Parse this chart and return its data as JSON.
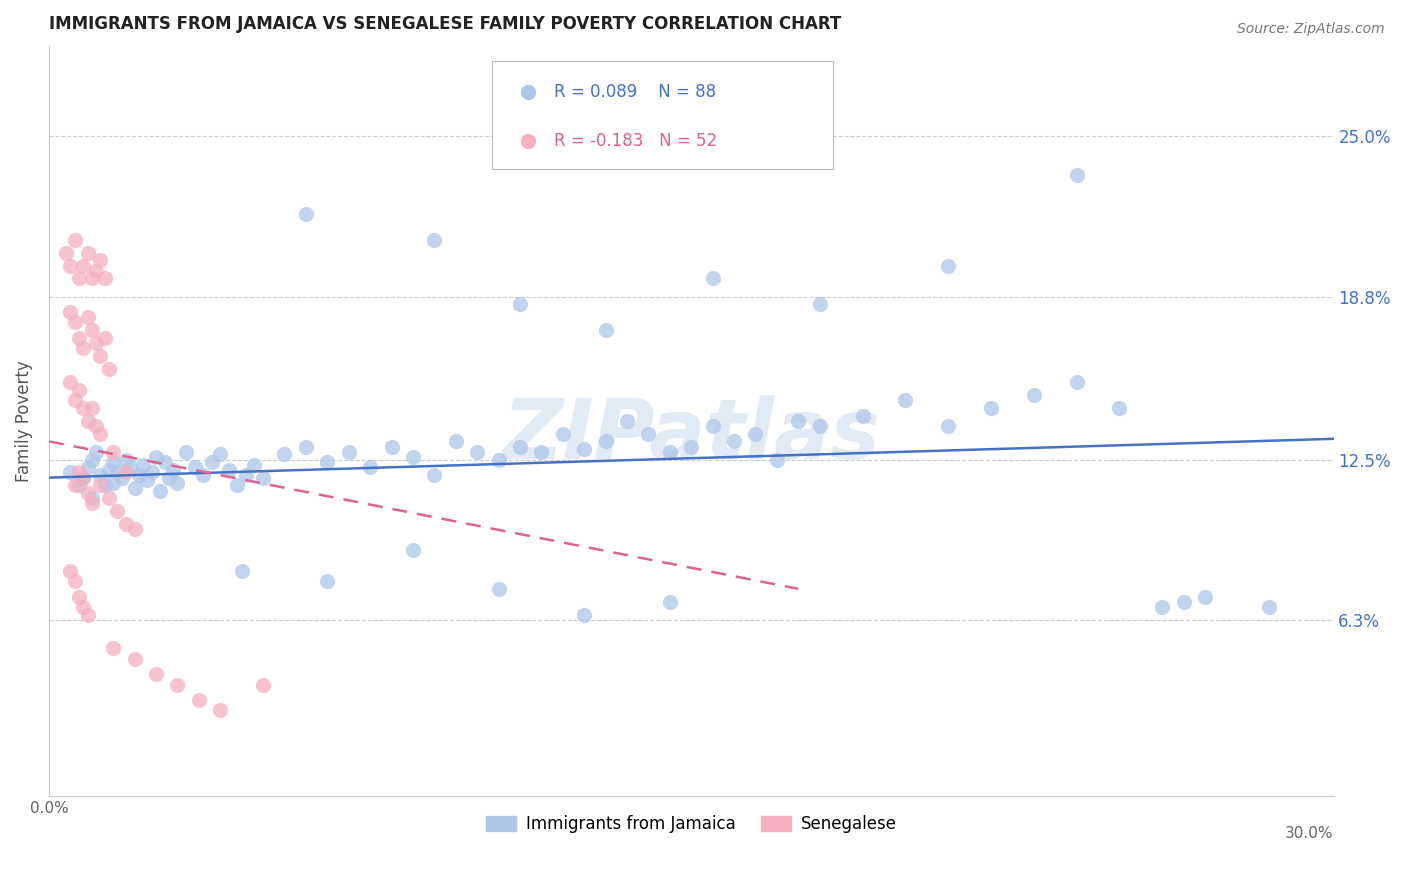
{
  "title": "IMMIGRANTS FROM JAMAICA VS SENEGALESE FAMILY POVERTY CORRELATION CHART",
  "source": "Source: ZipAtlas.com",
  "ylabel": "Family Poverty",
  "ytick_labels": [
    "25.0%",
    "18.8%",
    "12.5%",
    "6.3%"
  ],
  "ytick_values": [
    0.25,
    0.188,
    0.125,
    0.063
  ],
  "xlim": [
    0.0,
    0.3
  ],
  "ylim": [
    -0.005,
    0.285
  ],
  "legend_blue_R": "0.089",
  "legend_blue_N": "88",
  "legend_pink_R": "-0.183",
  "legend_pink_N": "52",
  "color_blue": "#adc6e8",
  "color_pink": "#f4afc0",
  "trendline_blue_color": "#4472c4",
  "trendline_pink_color": "#e06090",
  "watermark_text": "ZIPatlas",
  "watermark_color": "#d0ddf0",
  "blue_scatter_x": [
    0.005,
    0.007,
    0.008,
    0.009,
    0.01,
    0.01,
    0.011,
    0.012,
    0.013,
    0.014,
    0.015,
    0.015,
    0.016,
    0.017,
    0.018,
    0.019,
    0.02,
    0.021,
    0.022,
    0.023,
    0.024,
    0.025,
    0.026,
    0.027,
    0.028,
    0.029,
    0.03,
    0.032,
    0.034,
    0.036,
    0.038,
    0.04,
    0.042,
    0.044,
    0.046,
    0.048,
    0.05,
    0.055,
    0.06,
    0.065,
    0.07,
    0.075,
    0.08,
    0.085,
    0.09,
    0.095,
    0.1,
    0.105,
    0.11,
    0.115,
    0.12,
    0.125,
    0.13,
    0.135,
    0.14,
    0.145,
    0.15,
    0.155,
    0.16,
    0.165,
    0.17,
    0.175,
    0.18,
    0.19,
    0.2,
    0.21,
    0.22,
    0.23,
    0.24,
    0.25,
    0.26,
    0.27,
    0.06,
    0.09,
    0.11,
    0.13,
    0.155,
    0.18,
    0.21,
    0.24,
    0.265,
    0.285,
    0.045,
    0.065,
    0.085,
    0.105,
    0.125,
    0.145
  ],
  "blue_scatter_y": [
    0.12,
    0.115,
    0.118,
    0.122,
    0.11,
    0.125,
    0.128,
    0.119,
    0.115,
    0.121,
    0.124,
    0.116,
    0.12,
    0.118,
    0.125,
    0.122,
    0.114,
    0.119,
    0.123,
    0.117,
    0.12,
    0.126,
    0.113,
    0.124,
    0.118,
    0.121,
    0.116,
    0.128,
    0.122,
    0.119,
    0.124,
    0.127,
    0.121,
    0.115,
    0.119,
    0.123,
    0.118,
    0.127,
    0.13,
    0.124,
    0.128,
    0.122,
    0.13,
    0.126,
    0.119,
    0.132,
    0.128,
    0.125,
    0.13,
    0.128,
    0.135,
    0.129,
    0.132,
    0.14,
    0.135,
    0.128,
    0.13,
    0.138,
    0.132,
    0.135,
    0.125,
    0.14,
    0.138,
    0.142,
    0.148,
    0.138,
    0.145,
    0.15,
    0.155,
    0.145,
    0.068,
    0.072,
    0.22,
    0.21,
    0.185,
    0.175,
    0.195,
    0.185,
    0.2,
    0.235,
    0.07,
    0.068,
    0.082,
    0.078,
    0.09,
    0.075,
    0.065,
    0.07
  ],
  "pink_scatter_x": [
    0.004,
    0.005,
    0.006,
    0.007,
    0.008,
    0.009,
    0.01,
    0.011,
    0.012,
    0.013,
    0.005,
    0.006,
    0.007,
    0.008,
    0.009,
    0.01,
    0.011,
    0.012,
    0.013,
    0.014,
    0.005,
    0.006,
    0.007,
    0.008,
    0.009,
    0.01,
    0.011,
    0.012,
    0.015,
    0.018,
    0.006,
    0.007,
    0.008,
    0.009,
    0.01,
    0.012,
    0.014,
    0.016,
    0.018,
    0.02,
    0.005,
    0.006,
    0.007,
    0.008,
    0.009,
    0.015,
    0.02,
    0.025,
    0.03,
    0.035,
    0.04,
    0.05
  ],
  "pink_scatter_y": [
    0.205,
    0.2,
    0.21,
    0.195,
    0.2,
    0.205,
    0.195,
    0.198,
    0.202,
    0.195,
    0.182,
    0.178,
    0.172,
    0.168,
    0.18,
    0.175,
    0.17,
    0.165,
    0.172,
    0.16,
    0.155,
    0.148,
    0.152,
    0.145,
    0.14,
    0.145,
    0.138,
    0.135,
    0.128,
    0.12,
    0.115,
    0.12,
    0.118,
    0.112,
    0.108,
    0.115,
    0.11,
    0.105,
    0.1,
    0.098,
    0.082,
    0.078,
    0.072,
    0.068,
    0.065,
    0.052,
    0.048,
    0.042,
    0.038,
    0.032,
    0.028,
    0.038
  ],
  "blue_trend_x": [
    0.0,
    0.3
  ],
  "blue_trend_y": [
    0.118,
    0.133
  ],
  "pink_trend_x": [
    0.0,
    0.175
  ],
  "pink_trend_y": [
    0.132,
    0.075
  ]
}
